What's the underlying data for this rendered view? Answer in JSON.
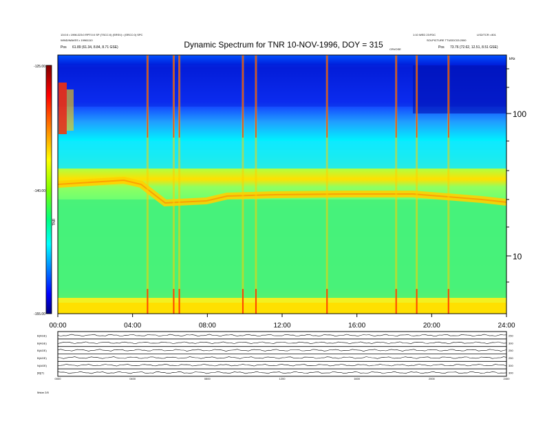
{
  "header": {
    "left_line1": "13:0:0 • 1996:223:0 RPT:0:0 SP (TSCC:0) (SRSV) • (SRCC:0) SPC",
    "left_line2": "WIND/WAVES • 19961110",
    "left_pos_label": "Pos",
    "left_pos_value": "61.89 (61.34, 8.84, 8.71 GSE)",
    "right_line1": "1:10 WED 23:FDC",
    "right_line1b": "LIS2/TCR • 801",
    "right_line2": "SOLPICTURE TTUDDC03:2000",
    "right_pos_label": "Pos",
    "right_pos_value": "73.76 (72.62, 12.51, 8.51 GSE)",
    "center_small": "CRVOSE",
    "right_unit": "kHz"
  },
  "chart_data": {
    "type": "heatmap",
    "title": "Dynamic Spectrum for TNR 10-NOV-1996, DOY = 315",
    "x_ticks": [
      "00:00",
      "04:00",
      "08:00",
      "12:00",
      "16:00",
      "20:00",
      "24:00"
    ],
    "x_range_hours": [
      0,
      24
    ],
    "y_scale": "log",
    "y_ticks": [
      "100",
      "10"
    ],
    "y_unit": "kHz",
    "colorbar": {
      "ticks": [
        "-125.00",
        "-140.00",
        "-155.00"
      ],
      "range": [
        -155,
        -125
      ],
      "label": "TNR",
      "colors": [
        "#000080",
        "#0000ff",
        "#0080ff",
        "#00ffff",
        "#00ff80",
        "#80ff00",
        "#ffff00",
        "#ff8000",
        "#ff0000",
        "#800000"
      ]
    },
    "bright_bursts_hours": [
      4.8,
      6.2,
      6.5,
      9.9,
      10.6,
      14.4,
      18.1,
      19.2,
      20.9
    ],
    "plasma_line_level": "near 30 kHz"
  },
  "panels": {
    "labels": [
      "B(AGE)",
      "B(AGE)",
      "B(AGE)",
      "B(AGE)",
      "N(AGE)",
      "[B](T)"
    ],
    "right_labels": [
      "250",
      "300",
      "250",
      "250",
      "300",
      "300"
    ],
    "x_ticks": [
      "0000",
      "0400",
      "0800",
      "1200",
      "1600",
      "2000",
      "2400"
    ],
    "footer_label": "Mstar  2/8"
  }
}
